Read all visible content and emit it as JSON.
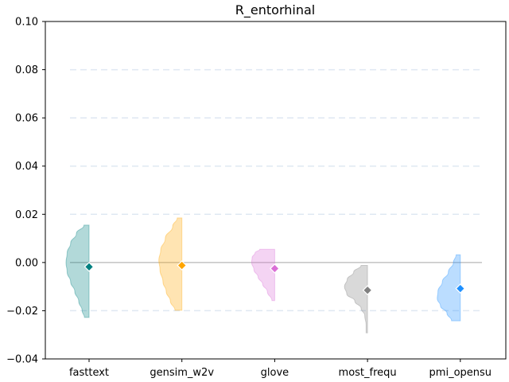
{
  "chart_data": {
    "type": "violin",
    "title": "R_entorhinal",
    "xlabel": "",
    "ylabel": "",
    "categories": [
      "fasttext",
      "gensim_w2v",
      "glove",
      "most_frequ",
      "pmi_opensu"
    ],
    "ylim": [
      -0.04,
      0.1
    ],
    "yticks": [
      "0.10",
      "0.08",
      "0.06",
      "0.04",
      "0.02",
      "0.00",
      "−0.02",
      "−0.04"
    ],
    "ytick_values": [
      0.1,
      0.08,
      0.06,
      0.04,
      0.02,
      0.0,
      -0.02,
      -0.04
    ],
    "grid": "horizontal dashed",
    "reference_line": 0.0,
    "series": [
      {
        "category": "fasttext",
        "color": "#008080",
        "marker": -0.0018,
        "min": -0.0228,
        "max": 0.0155,
        "density": [
          [
            0.0155,
            0.22
          ],
          [
            0.012,
            0.55
          ],
          [
            0.008,
            0.8
          ],
          [
            0.004,
            0.95
          ],
          [
            0.0,
            1.0
          ],
          [
            -0.004,
            0.95
          ],
          [
            -0.008,
            0.8
          ],
          [
            -0.012,
            0.62
          ],
          [
            -0.016,
            0.45
          ],
          [
            -0.02,
            0.3
          ],
          [
            -0.0228,
            0.2
          ]
        ]
      },
      {
        "category": "gensim_w2v",
        "color": "#FFA500",
        "marker": -0.0012,
        "min": -0.0198,
        "max": 0.0185,
        "density": [
          [
            0.0185,
            0.2
          ],
          [
            0.015,
            0.4
          ],
          [
            0.01,
            0.72
          ],
          [
            0.005,
            0.92
          ],
          [
            0.001,
            1.0
          ],
          [
            -0.003,
            0.95
          ],
          [
            -0.008,
            0.82
          ],
          [
            -0.012,
            0.68
          ],
          [
            -0.016,
            0.5
          ],
          [
            -0.0198,
            0.3
          ]
        ]
      },
      {
        "category": "glove",
        "color": "#DA70D6",
        "marker": -0.0025,
        "min": -0.0158,
        "max": 0.0055,
        "density": [
          [
            0.0055,
            0.65
          ],
          [
            0.004,
            0.85
          ],
          [
            0.002,
            0.98
          ],
          [
            0.0,
            1.0
          ],
          [
            -0.003,
            0.9
          ],
          [
            -0.006,
            0.72
          ],
          [
            -0.009,
            0.52
          ],
          [
            -0.012,
            0.32
          ],
          [
            -0.0158,
            0.12
          ]
        ]
      },
      {
        "category": "most_frequ",
        "color": "#808080",
        "marker": -0.0115,
        "min": -0.0292,
        "max": -0.0012,
        "density": [
          [
            -0.0012,
            0.28
          ],
          [
            -0.004,
            0.6
          ],
          [
            -0.007,
            0.88
          ],
          [
            -0.01,
            1.0
          ],
          [
            -0.013,
            0.9
          ],
          [
            -0.016,
            0.55
          ],
          [
            -0.019,
            0.28
          ],
          [
            -0.022,
            0.12
          ],
          [
            -0.026,
            0.06
          ],
          [
            -0.0292,
            0.06
          ]
        ]
      },
      {
        "category": "pmi_opensu",
        "color": "#1E90FF",
        "marker": -0.0108,
        "min": -0.0242,
        "max": 0.0032,
        "density": [
          [
            0.0032,
            0.18
          ],
          [
            0.0,
            0.3
          ],
          [
            -0.004,
            0.52
          ],
          [
            -0.008,
            0.78
          ],
          [
            -0.012,
            0.97
          ],
          [
            -0.015,
            1.0
          ],
          [
            -0.018,
            0.86
          ],
          [
            -0.021,
            0.58
          ],
          [
            -0.0242,
            0.38
          ]
        ]
      }
    ]
  }
}
